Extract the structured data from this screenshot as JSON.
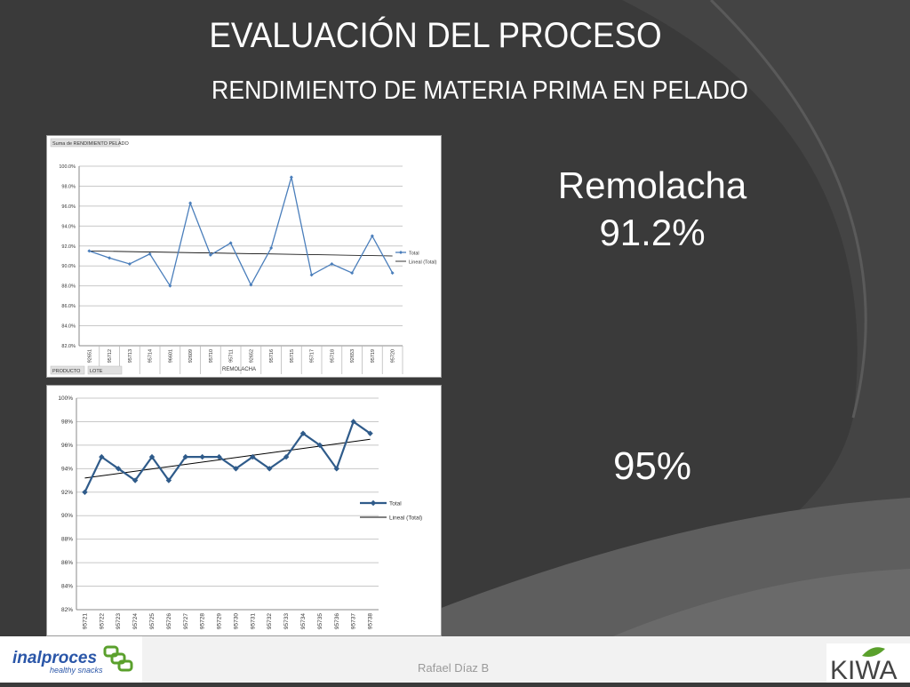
{
  "slide": {
    "title": "EVALUACIÓN DEL PROCESO",
    "subtitle": "RENDIMIENTO DE MATERIA PRIMA EN PELADO",
    "product_label": "Remolacha",
    "value_1": "91.2%",
    "value_2": "95%",
    "author": "Rafael Díaz B",
    "logo_left_text": "inalproces",
    "logo_left_tagline": "healthy snacks",
    "logo_right_text": "KIWA"
  },
  "colors": {
    "background": "#3b3b3b",
    "series": "#4a7ebb",
    "series2": "#2f5b8a",
    "trend": "#000000",
    "logo_left": "#2a56a8",
    "logo_green": "#5aa02c"
  },
  "chart_data": [
    {
      "type": "line",
      "title": "",
      "field_header": "Suma de RENDIMIENTO PELADO",
      "xlabel": "REMOLACHA",
      "filter_buttons": [
        "PRODUCTO",
        "LOTE"
      ],
      "categories": [
        "92651",
        "95712",
        "95713",
        "95714",
        "96601",
        "92609",
        "95710",
        "95711",
        "92652",
        "95716",
        "95715",
        "95717",
        "95718",
        "92653",
        "95719",
        "95720"
      ],
      "series": [
        {
          "name": "Total",
          "values": [
            91.5,
            90.8,
            90.2,
            91.2,
            88.0,
            96.3,
            91.1,
            92.3,
            88.1,
            91.8,
            98.9,
            89.1,
            90.2,
            89.3,
            93.0,
            89.3
          ]
        }
      ],
      "trend": {
        "name": "Lineal (Total)",
        "start": 91.5,
        "end": 91.0
      },
      "ylim": [
        82.0,
        100.0
      ],
      "yticks": [
        "100.0%",
        "98.0%",
        "96.0%",
        "94.0%",
        "92.0%",
        "90.0%",
        "88.0%",
        "86.0%",
        "84.0%",
        "82.0%"
      ],
      "grid": true,
      "legend": "right"
    },
    {
      "type": "line",
      "title": "",
      "xlabel": "",
      "categories": [
        "95721",
        "95722",
        "95723",
        "95724",
        "95725",
        "95726",
        "95727",
        "95728",
        "95729",
        "95730",
        "95731",
        "95732",
        "95733",
        "95734",
        "95735",
        "95736",
        "95737",
        "95738"
      ],
      "series": [
        {
          "name": "Total",
          "values": [
            92,
            95,
            94,
            93,
            95,
            93,
            95,
            95,
            95,
            94,
            95,
            94,
            95,
            97,
            96,
            94,
            98,
            97
          ]
        }
      ],
      "trend": {
        "name": "Lineal (Total)",
        "start": 93.2,
        "end": 96.5
      },
      "ylim": [
        82,
        100
      ],
      "yticks": [
        "100%",
        "98%",
        "96%",
        "94%",
        "92%",
        "90%",
        "88%",
        "86%",
        "84%",
        "82%"
      ],
      "grid": true,
      "legend": "right"
    }
  ]
}
